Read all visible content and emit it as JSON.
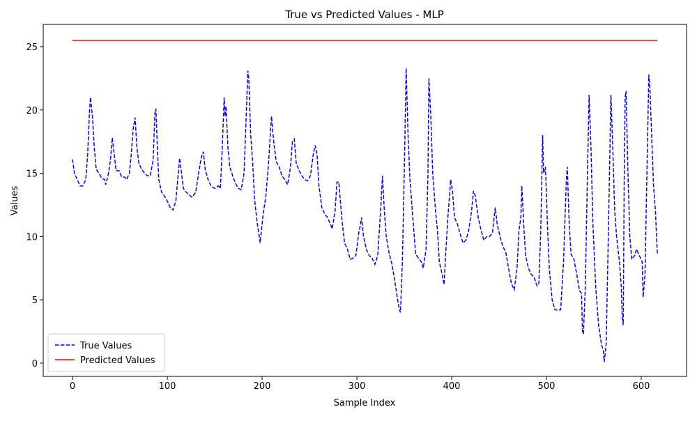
{
  "chart_data": {
    "type": "line",
    "title": "True vs Predicted Values - MLP",
    "xlabel": "Sample Index",
    "ylabel": "Values",
    "xlim": [
      -30.9,
      647.8
    ],
    "ylim": [
      -1.05,
      26.76
    ],
    "xticks": [
      0,
      100,
      200,
      300,
      400,
      500,
      600
    ],
    "yticks": [
      0,
      5,
      10,
      15,
      20,
      25
    ],
    "grid": false,
    "legend": "lower left",
    "series": [
      {
        "name": "True Values",
        "color": "#0000ff",
        "style": "dashed",
        "x": [
          0,
          2,
          5,
          8,
          11,
          14,
          16,
          18,
          19,
          21,
          23,
          25,
          28,
          31,
          34,
          35,
          38,
          40,
          42,
          44,
          46,
          49,
          52,
          55,
          57,
          60,
          62,
          64,
          66,
          68,
          70,
          73,
          76,
          79,
          82,
          85,
          87,
          88,
          89,
          91,
          94,
          97,
          100,
          103,
          106,
          109,
          111,
          113,
          115,
          117,
          120,
          123,
          126,
          130,
          133,
          136,
          138,
          140,
          143,
          146,
          150,
          154,
          156,
          158,
          160,
          161,
          162,
          164,
          166,
          169,
          172,
          175,
          178,
          181,
          183,
          185,
          186,
          188,
          190,
          192,
          195,
          198,
          201,
          204,
          207,
          209,
          210,
          211,
          213,
          215,
          218,
          221,
          224,
          227,
          230,
          232,
          234,
          236,
          239,
          242,
          245,
          248,
          251,
          254,
          256,
          258,
          260,
          263,
          266,
          269,
          272,
          274,
          277,
          279,
          281,
          284,
          287,
          290,
          293,
          296,
          299,
          302,
          304,
          305,
          307,
          310,
          313,
          316,
          319,
          322,
          325,
          327,
          329,
          331,
          334,
          337,
          340,
          343,
          345,
          346,
          348,
          350,
          352,
          354,
          356,
          359,
          362,
          365,
          368,
          370,
          373,
          375,
          376,
          378,
          380,
          383,
          385,
          387,
          390,
          392,
          394,
          396,
          399,
          401,
          403,
          406,
          409,
          412,
          415,
          418,
          421,
          423,
          425,
          428,
          431,
          434,
          437,
          440,
          443,
          446,
          448,
          451,
          454,
          457,
          460,
          463,
          466,
          469,
          471,
          473,
          474,
          476,
          478,
          481,
          484,
          487,
          490,
          492,
          494,
          496,
          497,
          499,
          501,
          503,
          506,
          509,
          512,
          515,
          518,
          521,
          522,
          524,
          526,
          529,
          532,
          535,
          537,
          538,
          539,
          541,
          543,
          545,
          547,
          549,
          552,
          555,
          558,
          560,
          561,
          563,
          565,
          567,
          568,
          570,
          572,
          574,
          577,
          579,
          580,
          581,
          582,
          583,
          584,
          586,
          588,
          590,
          593,
          595,
          598,
          601,
          602,
          604,
          606,
          608,
          609,
          611,
          613,
          615,
          617
        ],
        "values": [
          16.1,
          15,
          14.5,
          14,
          14,
          14.5,
          16.5,
          20,
          21,
          19.5,
          17,
          15.3,
          15,
          14.6,
          14.5,
          14.1,
          15,
          16,
          17.8,
          16.5,
          15.2,
          15.2,
          14.7,
          14.7,
          14.5,
          15,
          16.5,
          18.5,
          19.4,
          17,
          15.8,
          15.3,
          15,
          14.8,
          14.8,
          16,
          19.8,
          20.1,
          18,
          14.5,
          13.5,
          13.2,
          12.8,
          12.3,
          12.1,
          12.8,
          14.5,
          16.2,
          15,
          13.8,
          13.5,
          13.3,
          13.1,
          13.5,
          15,
          16.3,
          16.7,
          15.3,
          14.5,
          14,
          13.8,
          14,
          13.8,
          17,
          21,
          19.5,
          20.3,
          17,
          15.5,
          14.8,
          14.2,
          13.8,
          13.7,
          15,
          19,
          23.1,
          22.5,
          18,
          16,
          13,
          11,
          9.5,
          11.7,
          13.2,
          16,
          18.5,
          19.5,
          18.5,
          17,
          15.9,
          15.5,
          14.8,
          14.5,
          14.1,
          15.5,
          17.5,
          17.7,
          15.8,
          15.2,
          14.8,
          14.5,
          14.4,
          14.8,
          16.5,
          17.2,
          16.5,
          14,
          12.3,
          11.8,
          11.5,
          11,
          10.6,
          12,
          14.3,
          14.3,
          11.5,
          9.5,
          9,
          8.2,
          8.3,
          8.5,
          10.3,
          11,
          11.5,
          10,
          9,
          8.5,
          8.3,
          7.8,
          8.5,
          12,
          14.8,
          12,
          10,
          8.7,
          7.8,
          6.5,
          5,
          4.2,
          4,
          8,
          15,
          23.3,
          18,
          14.5,
          11.5,
          8.6,
          8.3,
          8,
          7.5,
          9,
          15,
          22.5,
          19.5,
          15,
          12,
          10.5,
          8,
          7,
          6.2,
          9,
          11.5,
          14.5,
          13.5,
          11.5,
          11,
          10.2,
          9.5,
          9.7,
          10.5,
          12,
          13.6,
          13.2,
          11.5,
          10.5,
          9.7,
          10,
          10,
          10.3,
          12.3,
          11,
          10,
          9.2,
          8.8,
          7.5,
          6.3,
          5.8,
          7.5,
          10.5,
          11.5,
          14,
          11,
          8.5,
          7.5,
          7,
          6.8,
          6.1,
          6.3,
          10.5,
          18,
          15,
          15.5,
          11,
          7.5,
          5,
          4.2,
          4.2,
          4.2,
          8,
          14.5,
          15.5,
          11,
          8.6,
          8.2,
          7,
          5.7,
          5.5,
          2.5,
          2.3,
          6,
          14,
          21.2,
          17,
          11,
          6,
          3,
          1.5,
          1,
          0.1,
          1.5,
          9,
          17,
          21.2,
          17,
          12,
          10,
          8,
          6,
          3.5,
          3,
          14,
          21,
          21.5,
          15,
          10,
          8.2,
          8.5,
          9,
          8.5,
          8,
          5.2,
          7,
          15,
          22.8,
          22,
          18,
          14,
          12,
          8.6
        ]
      },
      {
        "name": "Predicted Values",
        "color": "#ff0000",
        "style": "solid",
        "x": [
          0,
          617
        ],
        "values": [
          25.5,
          25.5
        ]
      }
    ]
  }
}
